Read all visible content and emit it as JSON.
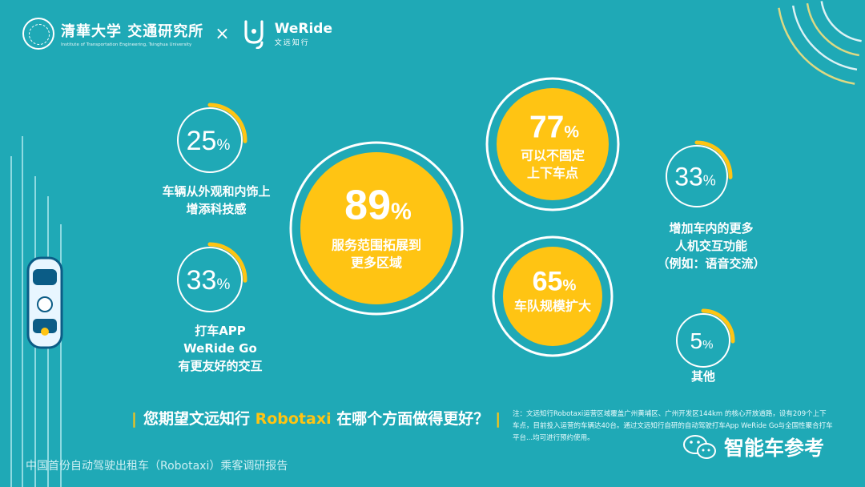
{
  "logos": {
    "tsinghua_name": "清華大学 交通研究所",
    "tsinghua_sub": "Institute of Transportation Engineering, Tsinghua University",
    "cross": "×",
    "weride_name": "WeRide",
    "weride_sub": "文远知行"
  },
  "chart_data": {
    "type": "bubble",
    "title": "您期望文远知行 Robotaxi 在哪个方面做得更好？",
    "percent_unit": "%",
    "items": [
      {
        "value": 89,
        "label": [
          "服务范围拓展到",
          "更多区域"
        ],
        "style": "filled"
      },
      {
        "value": 77,
        "label": [
          "可以不固定",
          "上下车点"
        ],
        "style": "filled"
      },
      {
        "value": 65,
        "label": [
          "车队规模扩大"
        ],
        "style": "filled"
      },
      {
        "value": 33,
        "label": [
          "增加车内的更多",
          "人机交互功能",
          "（例如：语音交流）"
        ],
        "style": "outline"
      },
      {
        "value": 33,
        "label": [
          "打车APP",
          "WeRide Go",
          "有更友好的交互"
        ],
        "style": "outline"
      },
      {
        "value": 25,
        "label": [
          "车辆从外观和内饰上",
          "增添科技感"
        ],
        "style": "outline"
      },
      {
        "value": 5,
        "label": [
          "其他"
        ],
        "style": "outline"
      }
    ]
  },
  "question": {
    "prefix": "您期望文远知行 ",
    "highlight": "Robotaxi",
    "suffix": " 在哪个方面做得更好？"
  },
  "note": "注：文远知行Robotaxi运营区域覆盖广州黄埔区、广州开发区144km 的核心开放道路，设有209个上下车点，目前投入运营的车辆达40台。通过文远知行自研的自动驾驶打车App WeRide Go与全国性聚合打车平台...均可进行预约使用。",
  "footer": "中国首份自动驾驶出租车（Robotaxi）乘客调研报告",
  "badge": "智能车参考",
  "colors": {
    "background": "#1fa9b6",
    "accent": "#ffc413",
    "text": "#ffffff"
  }
}
